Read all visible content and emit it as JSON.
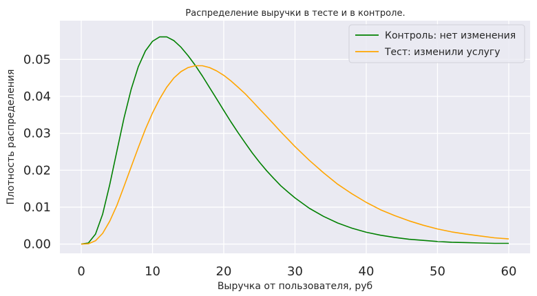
{
  "chart_data": {
    "type": "line",
    "title": "Распределение выручки в тесте и в контроле.",
    "xlabel": "Выручка от пользователя, руб",
    "ylabel": "Плотность распределения",
    "xlim": [
      -3,
      63
    ],
    "ylim": [
      -0.0025,
      0.0605
    ],
    "x_ticks": [
      0,
      10,
      20,
      30,
      40,
      50,
      60
    ],
    "x_tick_labels": [
      "0",
      "10",
      "20",
      "30",
      "40",
      "50",
      "60"
    ],
    "y_ticks": [
      0.0,
      0.01,
      0.02,
      0.03,
      0.04,
      0.05
    ],
    "y_tick_labels": [
      "0.00",
      "0.01",
      "0.02",
      "0.03",
      "0.04",
      "0.05"
    ],
    "grid": true,
    "legend_position": "top-right",
    "series": [
      {
        "name": "Контроль: нет изменения",
        "color": "#008000",
        "x": [
          0,
          1,
          2,
          3,
          4,
          5,
          6,
          7,
          8,
          9,
          10,
          11,
          12,
          13,
          14,
          15,
          16,
          17,
          18,
          19,
          20,
          21,
          22,
          23,
          24,
          25,
          26,
          27,
          28,
          29,
          30,
          32,
          34,
          36,
          38,
          40,
          42,
          44,
          46,
          48,
          50,
          52,
          54,
          56,
          58,
          60
        ],
        "y": [
          0.0,
          0.0003,
          0.0027,
          0.0081,
          0.0161,
          0.0252,
          0.0341,
          0.0419,
          0.048,
          0.0523,
          0.0549,
          0.0561,
          0.0561,
          0.0551,
          0.0533,
          0.051,
          0.0484,
          0.0455,
          0.0424,
          0.0393,
          0.0362,
          0.0331,
          0.0302,
          0.0274,
          0.0247,
          0.0222,
          0.0199,
          0.0178,
          0.0158,
          0.0141,
          0.0125,
          0.0097,
          0.0075,
          0.0057,
          0.0043,
          0.0032,
          0.0024,
          0.0018,
          0.0013,
          0.001,
          0.0007,
          0.0005,
          0.0004,
          0.0003,
          0.0002,
          0.0002
        ]
      },
      {
        "name": "Тест: изменили услугу",
        "color": "#FFA500",
        "x": [
          0,
          1,
          2,
          3,
          4,
          5,
          6,
          7,
          8,
          9,
          10,
          11,
          12,
          13,
          14,
          15,
          16,
          17,
          18,
          19,
          20,
          21,
          22,
          23,
          24,
          25,
          26,
          27,
          28,
          29,
          30,
          32,
          34,
          36,
          38,
          40,
          42,
          44,
          46,
          48,
          50,
          52,
          54,
          56,
          58,
          60
        ],
        "y": [
          0.0,
          0.0001,
          0.0009,
          0.0029,
          0.0062,
          0.0105,
          0.0156,
          0.0209,
          0.0261,
          0.0311,
          0.0355,
          0.0393,
          0.0425,
          0.045,
          0.0467,
          0.0478,
          0.0483,
          0.0483,
          0.0478,
          0.0469,
          0.0457,
          0.0442,
          0.0425,
          0.0407,
          0.0387,
          0.0366,
          0.0346,
          0.0325,
          0.0304,
          0.0284,
          0.0264,
          0.0227,
          0.0193,
          0.0162,
          0.0136,
          0.0113,
          0.0093,
          0.0077,
          0.0063,
          0.0051,
          0.0041,
          0.0033,
          0.0027,
          0.0022,
          0.0017,
          0.0014
        ]
      }
    ]
  }
}
